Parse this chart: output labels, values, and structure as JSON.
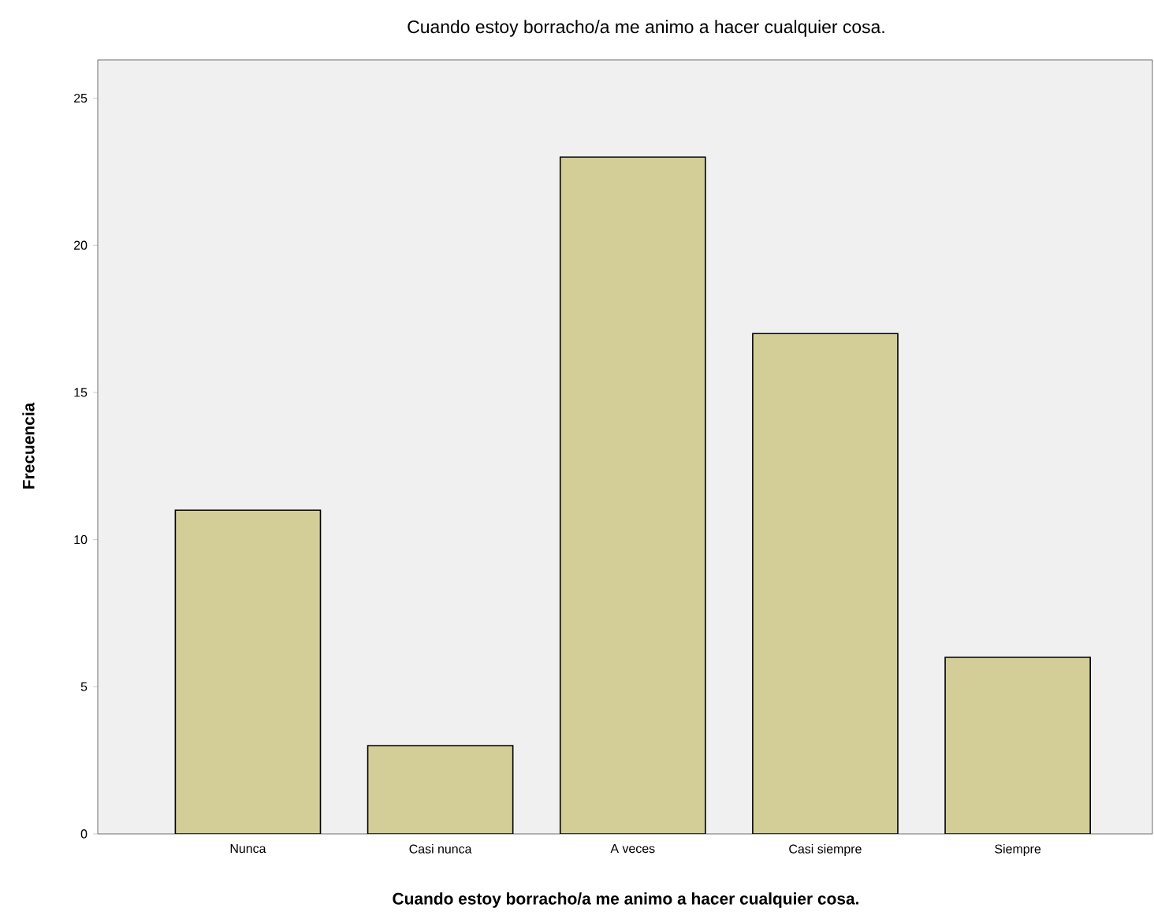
{
  "chart_data": {
    "type": "bar",
    "title": "Cuando estoy borracho/a me animo a hacer cualquier cosa.",
    "xlabel": "Cuando estoy borracho/a me animo a hacer cualquier cosa.",
    "ylabel": "Frecuencia",
    "categories": [
      "Nunca",
      "Casi nunca",
      "A veces",
      "Casi siempre",
      "Siempre"
    ],
    "values": [
      11,
      3,
      23,
      17,
      6
    ],
    "color": "#d3ce97",
    "ylim": [
      0,
      26.3
    ],
    "yticks": [
      0,
      5,
      10,
      15,
      20,
      25
    ]
  }
}
